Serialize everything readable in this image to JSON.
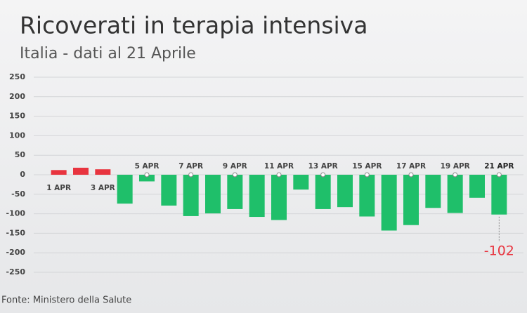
{
  "chart_data": {
    "type": "bar",
    "title": "Ricoverati in terapia intensiva",
    "subtitle": "Italia - dati al 21 Aprile",
    "source": "Fonte: Ministero della Salute",
    "categories": [
      "1 APR",
      null,
      "3 APR",
      null,
      "5 APR",
      null,
      "7 APR",
      null,
      "9 APR",
      null,
      "11 APR",
      null,
      "13 APR",
      null,
      "15 APR",
      null,
      "17 APR",
      null,
      "19 APR",
      null,
      "21 APR"
    ],
    "values": [
      12,
      18,
      14,
      -74,
      -17,
      -79,
      -106,
      -99,
      -88,
      -108,
      -116,
      -38,
      -88,
      -83,
      -107,
      -143,
      -129,
      -85,
      -98,
      -59,
      -102
    ],
    "positive_color": "#e8343f",
    "negative_color": "#1fbf6a",
    "ylim": [
      -250,
      250
    ],
    "yticks": [
      250,
      200,
      150,
      100,
      50,
      0,
      -50,
      -100,
      -150,
      -200,
      -250
    ],
    "grid": true
  }
}
